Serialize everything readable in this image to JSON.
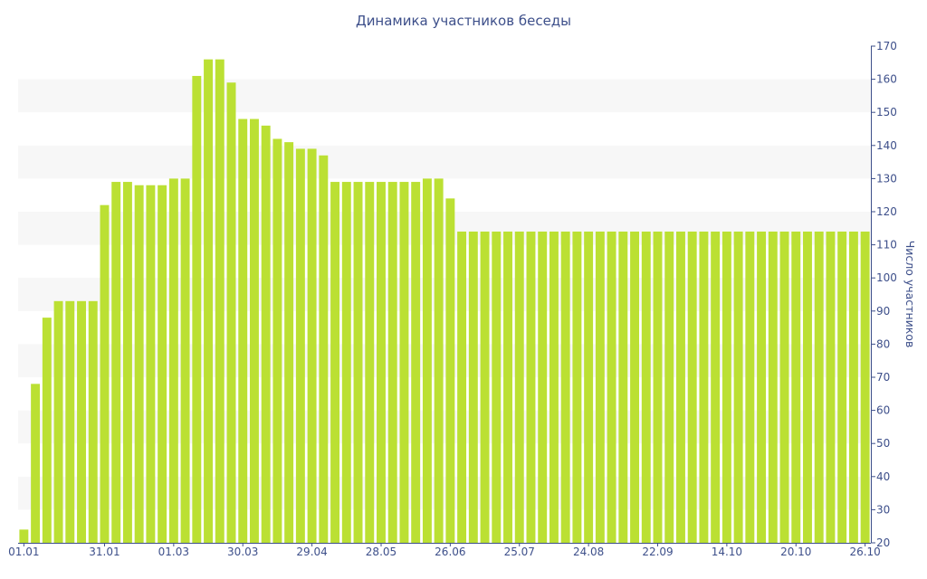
{
  "chart_data": {
    "type": "bar",
    "title": "Динамика участников беседы",
    "xlabel": "",
    "ylabel": "Число участников",
    "ylim": [
      20,
      170
    ],
    "y_ticks": [
      20,
      30,
      40,
      50,
      60,
      70,
      80,
      90,
      100,
      110,
      120,
      130,
      140,
      150,
      160,
      170
    ],
    "y_axis_position": "right",
    "x_tick_labels": [
      {
        "label": "01.01",
        "index": 0
      },
      {
        "label": "31.01",
        "index": 7
      },
      {
        "label": "01.03",
        "index": 13
      },
      {
        "label": "30.03",
        "index": 19
      },
      {
        "label": "29.04",
        "index": 25
      },
      {
        "label": "28.05",
        "index": 31
      },
      {
        "label": "26.06",
        "index": 37
      },
      {
        "label": "25.07",
        "index": 43
      },
      {
        "label": "24.08",
        "index": 49
      },
      {
        "label": "22.09",
        "index": 55
      },
      {
        "label": "14.10",
        "index": 61
      },
      {
        "label": "20.10",
        "index": 67
      },
      {
        "label": "26.10",
        "index": 73
      }
    ],
    "values": [
      24,
      68,
      88,
      93,
      93,
      93,
      93,
      122,
      129,
      129,
      128,
      128,
      128,
      130,
      130,
      161,
      166,
      166,
      159,
      148,
      148,
      146,
      142,
      141,
      139,
      139,
      137,
      129,
      129,
      129,
      129,
      129,
      129,
      129,
      129,
      130,
      130,
      124,
      114,
      114,
      114,
      114,
      114,
      114,
      114,
      114,
      114,
      114,
      114,
      114,
      114,
      114,
      114,
      114,
      114,
      114,
      114,
      114,
      114,
      114,
      114,
      114,
      114,
      114,
      114,
      114,
      114,
      114,
      114,
      114,
      114,
      114,
      114,
      114
    ],
    "grid": "alternating horizontal bands",
    "colors": {
      "bar": "#bbe033",
      "band": "#f7f7f7",
      "axis": "#3d4f8a",
      "text": "#3d4f8a"
    }
  }
}
